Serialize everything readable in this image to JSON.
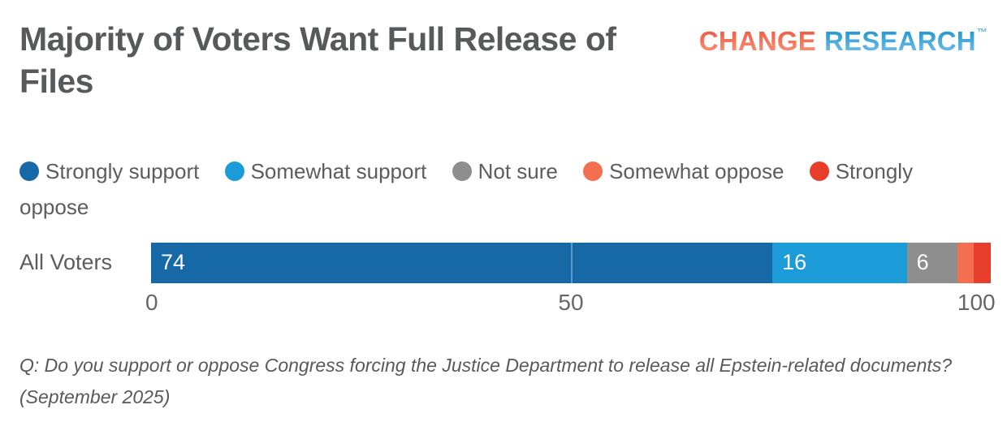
{
  "header": {
    "title": "Majority of Voters Want Full Release of Files",
    "logo": {
      "word1": "CHANGE",
      "word2": "RESEARCH",
      "trademark": "™",
      "word1_color": "#f0604a",
      "word2_color": "#2d9fd6"
    }
  },
  "chart_data": {
    "type": "bar",
    "orientation": "horizontal-stacked",
    "title": "Majority of Voters Want Full Release of Files",
    "categories": [
      "All Voters"
    ],
    "series": [
      {
        "name": "Strongly support",
        "color": "#1668a7",
        "values": [
          74
        ],
        "label_shown": true
      },
      {
        "name": "Somewhat support",
        "color": "#1b9cd8",
        "values": [
          16
        ],
        "label_shown": true
      },
      {
        "name": "Not sure",
        "color": "#8e8e8e",
        "values": [
          6
        ],
        "label_shown": true
      },
      {
        "name": "Somewhat oppose",
        "color": "#f2704f",
        "values": [
          2
        ],
        "label_shown": false
      },
      {
        "name": "Strongly oppose",
        "color": "#e63e2b",
        "values": [
          2
        ],
        "label_shown": false
      }
    ],
    "xlim": [
      0,
      100
    ],
    "x_ticks": [
      "0",
      "50",
      "100"
    ],
    "x_tick_values": [
      0,
      50,
      100
    ],
    "gridline_at": 50,
    "legend_position": "top",
    "value_label_style": "inside-left white",
    "bar_text_color": "#ffffff",
    "axis_text_color": "#66676a"
  },
  "footnote": "Q: Do you support or oppose Congress forcing the Justice Department to release all Epstein-related documents? (September 2025)"
}
